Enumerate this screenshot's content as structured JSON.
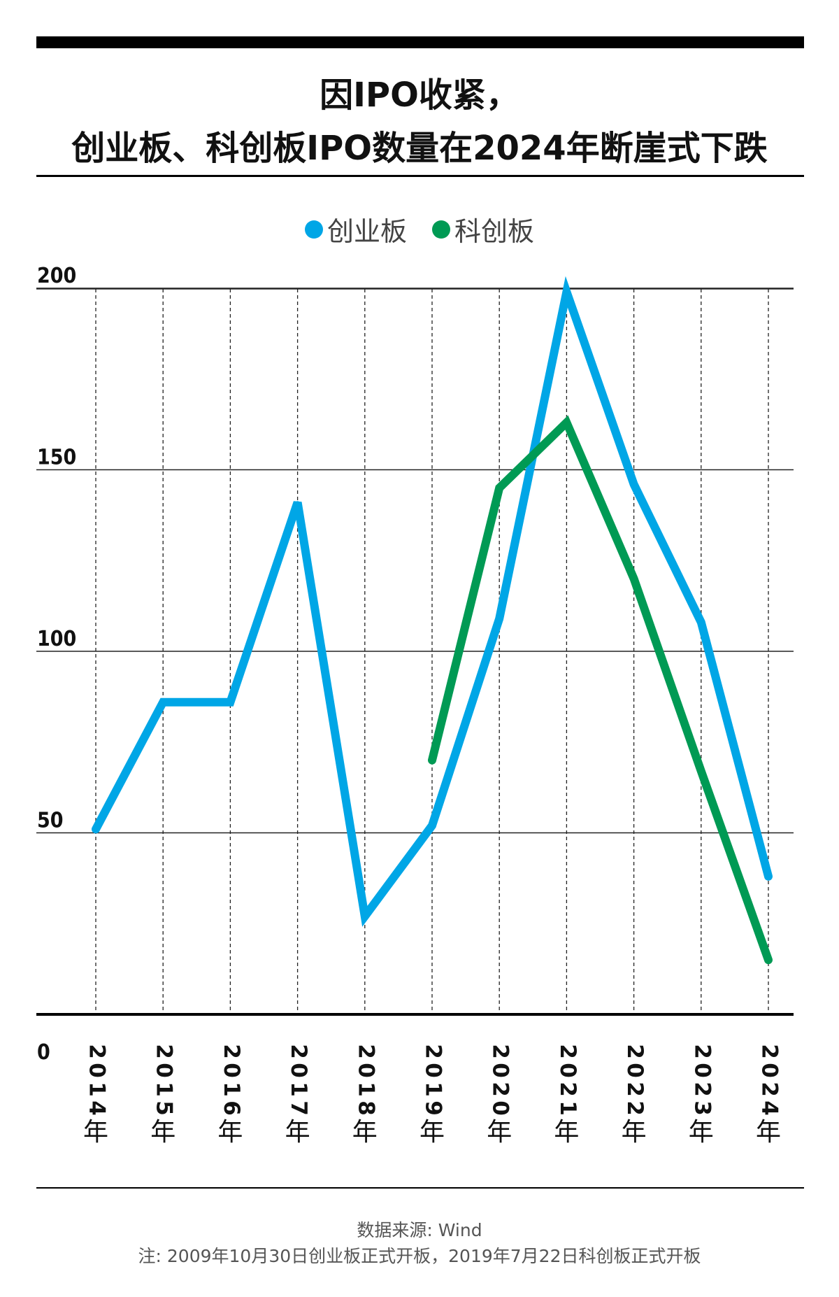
{
  "title_line1": "因IPO收紧，",
  "title_line2": "创业板、科创板IPO数量在2024年断崖式下跌",
  "source": "数据来源: Wind",
  "note": "注: 2009年10月30日创业板正式开板，2019年7月22日科创板正式开板",
  "chart_data": {
    "type": "line",
    "x": [
      "2014年",
      "2015年",
      "2016年",
      "2017年",
      "2018年",
      "2019年",
      "2020年",
      "2021年",
      "2022年",
      "2023年",
      "2024年"
    ],
    "xtick_years": [
      "2014",
      "2015",
      "2016",
      "2017",
      "2018",
      "2019",
      "2020",
      "2021",
      "2022",
      "2023",
      "2024"
    ],
    "xtick_suffix": "年",
    "yticks": [
      0,
      50,
      100,
      150,
      200
    ],
    "ylim": [
      0,
      200
    ],
    "grid": true,
    "legend": "top-center",
    "series": [
      {
        "name": "创业板",
        "color": "#00a6e6",
        "values": [
          51,
          86,
          86,
          141,
          27,
          52,
          109,
          199,
          146,
          108,
          38
        ]
      },
      {
        "name": "科创板",
        "color": "#009a54",
        "values": [
          null,
          null,
          null,
          null,
          null,
          70,
          145,
          163,
          120,
          67,
          15
        ]
      }
    ]
  }
}
